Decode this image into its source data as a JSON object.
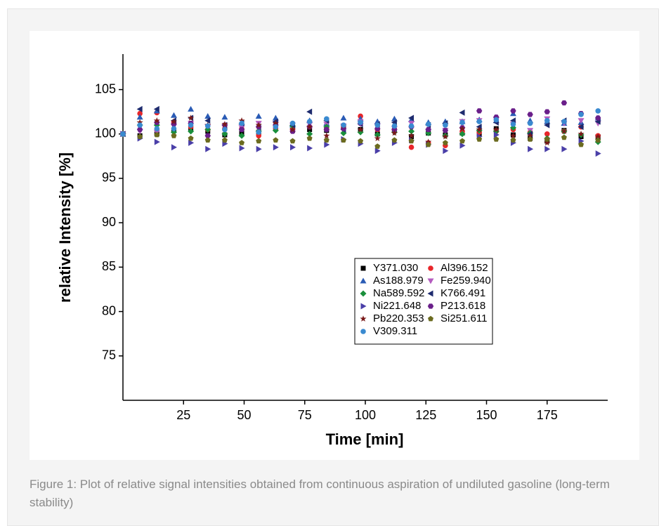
{
  "chart_data": {
    "type": "scatter",
    "xlabel": "Time  [min]",
    "ylabel": "relative Intensity [%]",
    "xlim": [
      0,
      200
    ],
    "xticks": [
      25,
      50,
      75,
      100,
      125,
      150,
      175
    ],
    "ylim": [
      70,
      109
    ],
    "yticks": [
      75,
      80,
      85,
      90,
      95,
      100,
      105
    ],
    "legend": "lower right",
    "x": [
      0,
      7,
      14,
      21,
      28,
      35,
      42,
      49,
      56,
      63,
      70,
      77,
      84,
      91,
      98,
      105,
      112,
      119,
      126,
      133,
      140,
      147,
      154,
      161,
      168,
      175,
      182,
      189,
      196
    ],
    "series": [
      {
        "name": "Y371.030",
        "color": "#000000",
        "marker": "square",
        "values": [
          100,
          99.8,
          100.0,
          100.4,
          100.5,
          100.3,
          99.9,
          100.1,
          100.2,
          100.9,
          100.4,
          100.5,
          100.4,
          100.8,
          100.5,
          100.0,
          100.4,
          99.7,
          100.1,
          99.9,
          100.1,
          100.0,
          100.6,
          99.9,
          99.5,
          99.2,
          100.4,
          99.7,
          99.7
        ]
      },
      {
        "name": "Al396.152",
        "color": "#e8262a",
        "marker": "circle",
        "values": [
          100,
          102.3,
          102.4,
          101.3,
          100.8,
          100.5,
          100.6,
          100.6,
          99.8,
          100.6,
          100.5,
          100.8,
          100.6,
          100.8,
          102.0,
          100.5,
          100.5,
          98.5,
          99.0,
          98.7,
          100.3,
          100.2,
          100.3,
          100.5,
          100.2,
          100.0,
          100.3,
          100.8,
          99.8
        ]
      },
      {
        "name": "As188.979",
        "color": "#2a5bb5",
        "marker": "triangle-up",
        "values": [
          100,
          101.9,
          102.6,
          102.1,
          102.8,
          102.0,
          101.9,
          101.3,
          102.0,
          101.8,
          101.0,
          101.5,
          101.2,
          101.8,
          101.7,
          101.4,
          101.7,
          101.6,
          101.3,
          101.4,
          101.4,
          101.6,
          101.5,
          102.3,
          101.5,
          101.4,
          101.2,
          101.3,
          101.8
        ]
      },
      {
        "name": "Fe259.940",
        "color": "#b45cbf",
        "marker": "triangle-down",
        "values": [
          100,
          100.3,
          100.2,
          100.9,
          101.2,
          100.8,
          100.8,
          100.7,
          101.2,
          101.2,
          101.0,
          101.1,
          101.1,
          100.9,
          101.4,
          100.9,
          100.6,
          101.2,
          100.3,
          100.4,
          101.4,
          101.5,
          101.6,
          101.1,
          100.4,
          101.7,
          101.2,
          101.5,
          101.2
        ]
      },
      {
        "name": "Na589.592",
        "color": "#1a8f3c",
        "marker": "diamond",
        "values": [
          100,
          101.0,
          101.0,
          100.2,
          100.3,
          100.5,
          100.0,
          99.8,
          100.3,
          100.4,
          100.9,
          100.0,
          100.8,
          100.1,
          100.2,
          99.9,
          100.2,
          100.3,
          100.1,
          99.8,
          100.0,
          100.4,
          100.3,
          100.7,
          100.1,
          99.5,
          100.3,
          99.9,
          99.1
        ]
      },
      {
        "name": "K766.491",
        "color": "#1e2b6e",
        "marker": "triangle-left",
        "values": [
          100,
          102.8,
          102.8,
          101.5,
          101.8,
          101.5,
          101.0,
          101.2,
          100.8,
          101.4,
          101.0,
          102.5,
          101.5,
          100.5,
          101.1,
          101.1,
          101.3,
          101.8,
          101.0,
          101.2,
          102.4,
          100.8,
          101.3,
          101.5,
          100.0,
          101.0,
          101.5,
          100.8,
          101.4
        ]
      },
      {
        "name": "Ni221.648",
        "color": "#4a3fa8",
        "marker": "triangle-right",
        "values": [
          100,
          99.5,
          99.1,
          98.5,
          99.0,
          98.3,
          98.9,
          98.4,
          98.3,
          98.5,
          98.5,
          98.4,
          98.8,
          99.4,
          98.9,
          98.1,
          99.0,
          99.3,
          98.8,
          98.1,
          98.7,
          99.7,
          99.9,
          99.0,
          98.3,
          98.3,
          98.3,
          99.2,
          97.8
        ]
      },
      {
        "name": "P213.618",
        "color": "#6a1f8a",
        "marker": "hexagon",
        "values": [
          100,
          100.5,
          101.3,
          101.1,
          101.2,
          99.8,
          101.0,
          100.5,
          100.8,
          101.0,
          100.3,
          100.8,
          100.5,
          100.6,
          101.2,
          100.6,
          100.5,
          100.8,
          100.5,
          100.4,
          100.7,
          102.6,
          101.9,
          102.6,
          102.2,
          102.5,
          103.5,
          102.3,
          101.8
        ]
      },
      {
        "name": "Pb220.353",
        "color": "#7a1a1a",
        "marker": "star",
        "values": [
          100,
          101.3,
          101.5,
          101.4,
          101.8,
          101.0,
          101.1,
          101.5,
          101.0,
          101.2,
          100.5,
          100.8,
          99.8,
          100.9,
          100.5,
          99.5,
          100.1,
          99.8,
          99.1,
          99.7,
          100.6,
          100.5,
          100.5,
          99.8,
          99.8,
          99.0,
          100.3,
          100.0,
          99.7
        ]
      },
      {
        "name": "Si251.611",
        "color": "#6b6b1f",
        "marker": "pentagon",
        "values": [
          100,
          99.7,
          99.9,
          99.8,
          99.5,
          99.3,
          99.3,
          99.0,
          99.2,
          99.3,
          99.2,
          99.5,
          99.3,
          99.3,
          99.2,
          98.6,
          99.3,
          99.2,
          98.8,
          99.0,
          99.2,
          99.4,
          99.4,
          99.3,
          99.4,
          99.4,
          99.6,
          98.8,
          99.3
        ]
      },
      {
        "name": "V309.311",
        "color": "#3a8ad0",
        "marker": "circle",
        "values": [
          100,
          101.0,
          100.6,
          100.6,
          101.0,
          100.9,
          100.5,
          101.2,
          100.2,
          100.8,
          101.2,
          101.4,
          101.7,
          101.0,
          101.3,
          101.0,
          100.9,
          100.9,
          101.1,
          101.0,
          101.3,
          101.4,
          101.6,
          101.1,
          101.2,
          101.5,
          101.4,
          102.2,
          102.6
        ]
      }
    ]
  },
  "caption": "Figure 1: Plot of relative signal intensities obtained from continuous aspiration of undiluted gasoline (long-term stability)"
}
